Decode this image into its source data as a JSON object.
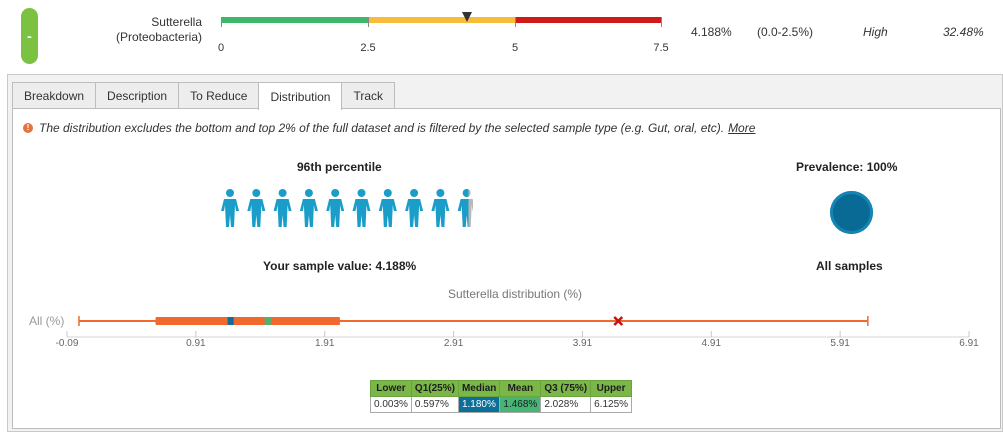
{
  "top": {
    "collapse_label": "-",
    "taxon_name": "Sutterella",
    "taxon_phylum": "(Proteobacteria)",
    "range_labels": [
      "0",
      "2.5",
      "5",
      "7.5"
    ],
    "segment_colors": [
      "#3db86a",
      "#f7bd3a",
      "#cf1a1a"
    ],
    "value": "4.188%",
    "reference_range": "(0.0-2.5%)",
    "level": "High",
    "percent": "32.48%"
  },
  "tabs": [
    {
      "label": "Breakdown"
    },
    {
      "label": "Description"
    },
    {
      "label": "To Reduce"
    },
    {
      "label": "Distribution",
      "active": true
    },
    {
      "label": "Track"
    }
  ],
  "distribution": {
    "notice": "The distribution excludes the bottom and top 2% of the full dataset and is filtered by the selected sample type (e.g. Gut, oral, etc).",
    "more_link": "More",
    "percentile_title": "96th percentile",
    "people_filled": 9.6,
    "people_total": 10,
    "sample_value_label": "Your sample value: 4.188%",
    "prevalence_title": "Prevalence: 100%",
    "prevalence_caption": "All samples",
    "chart_title": "Sutterella distribution (%)",
    "row_label": "All (%)"
  },
  "chart_data": {
    "type": "boxplot",
    "title": "Sutterella distribution (%)",
    "row_label": "All (%)",
    "x_ticks": [
      "-0.09",
      "0.91",
      "1.91",
      "2.91",
      "3.91",
      "4.91",
      "5.91",
      "6.91"
    ],
    "xlim": [
      -0.09,
      6.91
    ],
    "lower": 0.003,
    "q1": 0.597,
    "median": 1.18,
    "mean": 1.468,
    "q3": 2.028,
    "upper": 6.125,
    "sample_value": 4.188,
    "colors": {
      "box": "#ef6a2c",
      "whisker": "#ef6a2c",
      "median": "#0d6f98",
      "mean": "#46b576",
      "sample": "#cc1111"
    }
  },
  "stats_table": {
    "headers": [
      "Lower",
      "Q1(25%)",
      "Median",
      "Mean",
      "Q3 (75%)",
      "Upper"
    ],
    "values": [
      "0.003%",
      "0.597%",
      "1.180%",
      "1.468%",
      "2.028%",
      "6.125%"
    ]
  }
}
